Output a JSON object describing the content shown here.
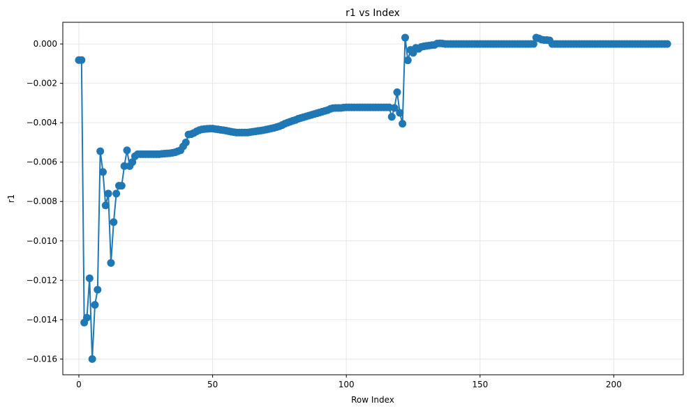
{
  "chart_data": {
    "type": "line",
    "title": "r1 vs Index",
    "xlabel": "Row Index",
    "ylabel": "r1",
    "xlim": [
      -6,
      226
    ],
    "ylim": [
      -0.0168,
      0.0011
    ],
    "x_ticks": [
      0,
      50,
      100,
      150,
      200
    ],
    "x_tick_labels": [
      "0",
      "50",
      "100",
      "150",
      "200"
    ],
    "y_ticks": [
      -0.016,
      -0.014,
      -0.012,
      -0.01,
      -0.008,
      -0.006,
      -0.004,
      -0.002,
      0.0
    ],
    "y_tick_labels": [
      "−0.016",
      "−0.014",
      "−0.012",
      "−0.010",
      "−0.008",
      "−0.006",
      "−0.004",
      "−0.002",
      "0.000"
    ],
    "grid": true,
    "legend": "none",
    "series_color": "#1f77b4",
    "grid_color": "#e6e6e6",
    "marker": "circle",
    "points": [
      [
        0,
        -0.00082
      ],
      [
        1,
        -0.00082
      ],
      [
        2,
        -0.01415
      ],
      [
        3,
        -0.0139
      ],
      [
        4,
        -0.0119
      ],
      [
        5,
        -0.016
      ],
      [
        6,
        -0.01325
      ],
      [
        7,
        -0.01248
      ],
      [
        8,
        -0.00545
      ],
      [
        9,
        -0.0065
      ],
      [
        10,
        -0.0082
      ],
      [
        11,
        -0.0076
      ],
      [
        12,
        -0.01112
      ],
      [
        13,
        -0.00905
      ],
      [
        14,
        -0.0076
      ],
      [
        15,
        -0.0072
      ],
      [
        16,
        -0.0072
      ],
      [
        17,
        -0.0062
      ],
      [
        18,
        -0.0054
      ],
      [
        19,
        -0.0062
      ],
      [
        20,
        -0.006
      ],
      [
        21,
        -0.0057
      ],
      [
        22,
        -0.0056
      ],
      [
        23,
        -0.0056
      ],
      [
        24,
        -0.0056
      ],
      [
        25,
        -0.0056
      ],
      [
        26,
        -0.0056
      ],
      [
        27,
        -0.0056
      ],
      [
        28,
        -0.0056
      ],
      [
        29,
        -0.0056
      ],
      [
        30,
        -0.0056
      ],
      [
        31,
        -0.00558
      ],
      [
        32,
        -0.00557
      ],
      [
        33,
        -0.00556
      ],
      [
        34,
        -0.00555
      ],
      [
        35,
        -0.00553
      ],
      [
        36,
        -0.0055
      ],
      [
        37,
        -0.00545
      ],
      [
        38,
        -0.0054
      ],
      [
        39,
        -0.0052
      ],
      [
        40,
        -0.005
      ],
      [
        41,
        -0.0046
      ],
      [
        42,
        -0.00458
      ],
      [
        43,
        -0.00452
      ],
      [
        44,
        -0.00444
      ],
      [
        45,
        -0.00438
      ],
      [
        46,
        -0.00434
      ],
      [
        47,
        -0.00432
      ],
      [
        48,
        -0.00431
      ],
      [
        49,
        -0.0043
      ],
      [
        50,
        -0.0043
      ],
      [
        51,
        -0.00432
      ],
      [
        52,
        -0.00434
      ],
      [
        53,
        -0.00436
      ],
      [
        54,
        -0.00438
      ],
      [
        55,
        -0.0044
      ],
      [
        56,
        -0.00443
      ],
      [
        57,
        -0.00446
      ],
      [
        58,
        -0.00448
      ],
      [
        59,
        -0.0045
      ],
      [
        60,
        -0.0045
      ],
      [
        61,
        -0.0045
      ],
      [
        62,
        -0.0045
      ],
      [
        63,
        -0.0045
      ],
      [
        64,
        -0.00448
      ],
      [
        65,
        -0.00446
      ],
      [
        66,
        -0.00444
      ],
      [
        67,
        -0.00442
      ],
      [
        68,
        -0.0044
      ],
      [
        69,
        -0.00438
      ],
      [
        70,
        -0.00435
      ],
      [
        71,
        -0.00432
      ],
      [
        72,
        -0.00429
      ],
      [
        73,
        -0.00426
      ],
      [
        74,
        -0.00422
      ],
      [
        75,
        -0.00418
      ],
      [
        76,
        -0.00412
      ],
      [
        77,
        -0.00405
      ],
      [
        78,
        -0.004
      ],
      [
        79,
        -0.00395
      ],
      [
        80,
        -0.0039
      ],
      [
        81,
        -0.00386
      ],
      [
        82,
        -0.0038
      ],
      [
        83,
        -0.00376
      ],
      [
        84,
        -0.00372
      ],
      [
        85,
        -0.00368
      ],
      [
        86,
        -0.00364
      ],
      [
        87,
        -0.0036
      ],
      [
        88,
        -0.00356
      ],
      [
        89,
        -0.00352
      ],
      [
        90,
        -0.00348
      ],
      [
        91,
        -0.00344
      ],
      [
        92,
        -0.0034
      ],
      [
        93,
        -0.00336
      ],
      [
        94,
        -0.0033
      ],
      [
        95,
        -0.00326
      ],
      [
        96,
        -0.00325
      ],
      [
        97,
        -0.00325
      ],
      [
        98,
        -0.00325
      ],
      [
        99,
        -0.00323
      ],
      [
        100,
        -0.00322
      ],
      [
        101,
        -0.00322
      ],
      [
        102,
        -0.00322
      ],
      [
        103,
        -0.00322
      ],
      [
        104,
        -0.00322
      ],
      [
        105,
        -0.00322
      ],
      [
        106,
        -0.00322
      ],
      [
        107,
        -0.00322
      ],
      [
        108,
        -0.00322
      ],
      [
        109,
        -0.00322
      ],
      [
        110,
        -0.00322
      ],
      [
        111,
        -0.00322
      ],
      [
        112,
        -0.00322
      ],
      [
        113,
        -0.00322
      ],
      [
        114,
        -0.00322
      ],
      [
        115,
        -0.00322
      ],
      [
        116,
        -0.00322
      ],
      [
        117,
        -0.0037
      ],
      [
        118,
        -0.00325
      ],
      [
        119,
        -0.00245
      ],
      [
        120,
        -0.0035
      ],
      [
        121,
        -0.00405
      ],
      [
        122,
        0.00032
      ],
      [
        123,
        -0.00083
      ],
      [
        124,
        -0.0003
      ],
      [
        125,
        -0.00045
      ],
      [
        126,
        -0.0002
      ],
      [
        127,
        -0.00025
      ],
      [
        128,
        -0.00015
      ],
      [
        129,
        -0.00012
      ],
      [
        130,
        -0.0001
      ],
      [
        131,
        -8e-05
      ],
      [
        132,
        -6e-05
      ],
      [
        133,
        -5e-05
      ],
      [
        134,
        2e-05
      ],
      [
        135,
        3e-05
      ],
      [
        136,
        2e-05
      ],
      [
        137,
        0.0
      ],
      [
        138,
        0.0
      ],
      [
        139,
        0.0
      ],
      [
        140,
        0.0
      ],
      [
        141,
        0.0
      ],
      [
        142,
        0.0
      ],
      [
        143,
        0.0
      ],
      [
        144,
        0.0
      ],
      [
        145,
        0.0
      ],
      [
        146,
        0.0
      ],
      [
        147,
        0.0
      ],
      [
        148,
        0.0
      ],
      [
        149,
        0.0
      ],
      [
        150,
        0.0
      ],
      [
        151,
        0.0
      ],
      [
        152,
        0.0
      ],
      [
        153,
        0.0
      ],
      [
        154,
        0.0
      ],
      [
        155,
        0.0
      ],
      [
        156,
        0.0
      ],
      [
        157,
        0.0
      ],
      [
        158,
        0.0
      ],
      [
        159,
        0.0
      ],
      [
        160,
        0.0
      ],
      [
        161,
        0.0
      ],
      [
        162,
        0.0
      ],
      [
        163,
        0.0
      ],
      [
        164,
        0.0
      ],
      [
        165,
        0.0
      ],
      [
        166,
        0.0
      ],
      [
        167,
        0.0
      ],
      [
        168,
        0.0
      ],
      [
        169,
        0.0
      ],
      [
        170,
        0.0
      ],
      [
        171,
        0.00032
      ],
      [
        172,
        0.00028
      ],
      [
        173,
        0.00022
      ],
      [
        174,
        0.0002
      ],
      [
        175,
        0.0002
      ],
      [
        176,
        0.00018
      ],
      [
        177,
        0.0
      ],
      [
        178,
        0.0
      ],
      [
        179,
        0.0
      ],
      [
        180,
        0.0
      ],
      [
        181,
        0.0
      ],
      [
        182,
        0.0
      ],
      [
        183,
        0.0
      ],
      [
        184,
        0.0
      ],
      [
        185,
        0.0
      ],
      [
        186,
        0.0
      ],
      [
        187,
        0.0
      ],
      [
        188,
        0.0
      ],
      [
        189,
        0.0
      ],
      [
        190,
        0.0
      ],
      [
        191,
        0.0
      ],
      [
        192,
        0.0
      ],
      [
        193,
        0.0
      ],
      [
        194,
        0.0
      ],
      [
        195,
        0.0
      ],
      [
        196,
        0.0
      ],
      [
        197,
        0.0
      ],
      [
        198,
        0.0
      ],
      [
        199,
        0.0
      ],
      [
        200,
        0.0
      ],
      [
        201,
        0.0
      ],
      [
        202,
        0.0
      ],
      [
        203,
        0.0
      ],
      [
        204,
        0.0
      ],
      [
        205,
        0.0
      ],
      [
        206,
        0.0
      ],
      [
        207,
        0.0
      ],
      [
        208,
        0.0
      ],
      [
        209,
        0.0
      ],
      [
        210,
        0.0
      ],
      [
        211,
        0.0
      ],
      [
        212,
        0.0
      ],
      [
        213,
        0.0
      ],
      [
        214,
        0.0
      ],
      [
        215,
        0.0
      ],
      [
        216,
        0.0
      ],
      [
        217,
        0.0
      ],
      [
        218,
        0.0
      ],
      [
        219,
        0.0
      ],
      [
        220,
        0.0
      ]
    ]
  }
}
